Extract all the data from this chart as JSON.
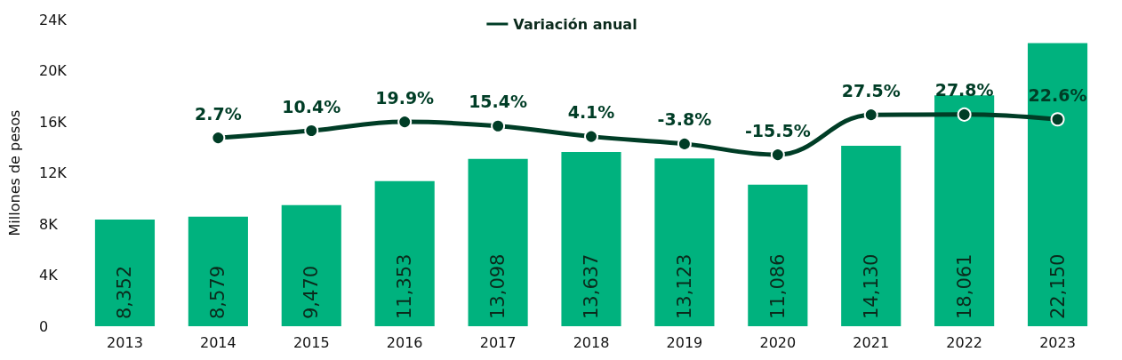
{
  "chart_data": {
    "type": "bar",
    "ylabel": "Millones de pesos",
    "categories": [
      "2013",
      "2014",
      "2015",
      "2016",
      "2017",
      "2018",
      "2019",
      "2020",
      "2021",
      "2022",
      "2023"
    ],
    "series": [
      {
        "color": "#00b27e",
        "values": [
          8352,
          8579,
          9470,
          11353,
          13098,
          13637,
          13123,
          11086,
          14130,
          18061,
          22150
        ],
        "value_labels": [
          "8,352",
          "8,579",
          "9,470",
          "11,353",
          "13,098",
          "13,637",
          "13,123",
          "11,086",
          "14,130",
          "18,061",
          "22,150"
        ]
      },
      {
        "type": "line",
        "name": "Variación anual",
        "color": "#003d26",
        "axis": "y2",
        "values": [
          null,
          2.7,
          10.4,
          19.9,
          15.4,
          4.1,
          -3.8,
          -15.5,
          27.5,
          27.8,
          22.6
        ],
        "value_labels": [
          null,
          "2.7%",
          "10.4%",
          "19.9%",
          "15.4%",
          "4.1%",
          "-3.8%",
          "-15.5%",
          "27.5%",
          "27.8%",
          "22.6%"
        ]
      }
    ],
    "ylim": [
      0,
      24000
    ],
    "yticks": [
      {
        "value": 0,
        "label": "0"
      },
      {
        "value": 4000,
        "label": "4K"
      },
      {
        "value": 8000,
        "label": "8K"
      },
      {
        "value": 12000,
        "label": "12K"
      },
      {
        "value": 16000,
        "label": "16K"
      },
      {
        "value": 20000,
        "label": "20K"
      },
      {
        "value": 24000,
        "label": "24K"
      }
    ],
    "y2lim": [
      -200,
      130
    ],
    "tick_labels": "xy",
    "grid": false,
    "legend": "top",
    "marker": "circle",
    "line_style": "solid"
  }
}
